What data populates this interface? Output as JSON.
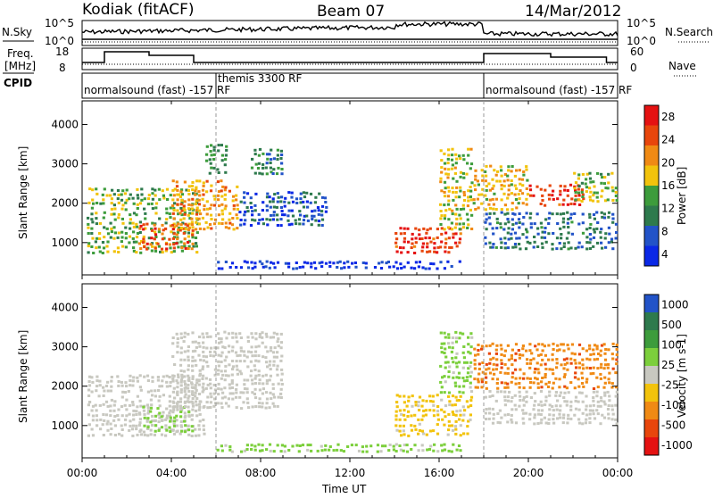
{
  "header": {
    "station": "Kodiak (fitACF)",
    "beam": "Beam 07",
    "date": "14/Mar/2012"
  },
  "strip": {
    "nsky_label": "N.Sky",
    "nsearch_label": "N.Search",
    "nsky_ticks": [
      "10^5",
      "10^0"
    ],
    "nsearch_ticks": [
      "10^5",
      "10^0"
    ],
    "freq_label_line1": "Freq.",
    "freq_label_line2": "[MHz]",
    "freq_ticks": [
      "18",
      "8"
    ],
    "nave_label": "Nave",
    "nave_ticks": [
      "60",
      "0"
    ],
    "cpid_label": "CPID",
    "cpid_segments": [
      {
        "label": "normalsound (fast) -157 RF",
        "start": "00:00",
        "end": "06:00"
      },
      {
        "label": "themis 3300 RF",
        "start": "06:00",
        "end": "18:00"
      },
      {
        "label": "normalsound (fast) -157 RF",
        "start": "18:00",
        "end": "24:00"
      }
    ]
  },
  "chart_data": [
    {
      "type": "heatmap",
      "name": "Power",
      "ylabel": "Slant Range [km]",
      "ylim": [
        180,
        4600
      ],
      "y_ticks": [
        "1000",
        "2000",
        "3000",
        "4000"
      ],
      "colorbar_label": "Power [dB]",
      "colorbar_ticks": [
        "28",
        "24",
        "20",
        "16",
        "12",
        "8",
        "4"
      ],
      "colorbar_range": [
        0,
        30
      ],
      "colors": [
        "#0a28e6",
        "#2253c8",
        "#2e7a4d",
        "#3d9c3c",
        "#f2c30c",
        "#f08a14",
        "#e8460c",
        "#e51212"
      ],
      "regions": [
        {
          "t0": 0.2,
          "t1": 5.2,
          "r0": 700,
          "r1": 2400,
          "v": 14
        },
        {
          "t0": 2.5,
          "t1": 5.0,
          "r0": 800,
          "r1": 1500,
          "v": 24
        },
        {
          "t0": 4.0,
          "t1": 7.0,
          "r0": 1300,
          "r1": 2600,
          "v": 20
        },
        {
          "t0": 5.5,
          "t1": 6.5,
          "r0": 2700,
          "r1": 3500,
          "v": 12
        },
        {
          "t0": 7.5,
          "t1": 9.0,
          "r0": 2700,
          "r1": 3400,
          "v": 10
        },
        {
          "t0": 7.0,
          "t1": 11.0,
          "r0": 1400,
          "r1": 2300,
          "v": 6
        },
        {
          "t0": 6.0,
          "t1": 17.0,
          "r0": 300,
          "r1": 550,
          "v": 3
        },
        {
          "t0": 14.0,
          "t1": 17.0,
          "r0": 700,
          "r1": 1400,
          "v": 26
        },
        {
          "t0": 16.0,
          "t1": 17.5,
          "r0": 1300,
          "r1": 3400,
          "v": 16
        },
        {
          "t0": 17.5,
          "t1": 20.0,
          "r0": 1800,
          "r1": 3000,
          "v": 18
        },
        {
          "t0": 20.0,
          "t1": 22.5,
          "r0": 1900,
          "r1": 2500,
          "v": 26
        },
        {
          "t0": 18.0,
          "t1": 24.0,
          "r0": 800,
          "r1": 1800,
          "v": 8
        },
        {
          "t0": 22.0,
          "t1": 24.0,
          "r0": 2000,
          "r1": 2800,
          "v": 14
        }
      ]
    },
    {
      "type": "heatmap",
      "name": "Velocity",
      "ylabel": "Slant Range [km]",
      "ylim": [
        180,
        4600
      ],
      "y_ticks": [
        "1000",
        "2000",
        "3000",
        "4000"
      ],
      "colorbar_label": "Velocity [m s-1]",
      "colorbar_ticks": [
        "1000",
        "500",
        "100",
        "25",
        "-25",
        "-100",
        "-500",
        "-1000"
      ],
      "colorbar_range": [
        -1200,
        1200
      ],
      "colors": [
        "#e51212",
        "#e8460c",
        "#f08a14",
        "#f2c30c",
        "#c8c8c0",
        "#7ccf3c",
        "#3d9c3c",
        "#2e7a4d",
        "#2253c8"
      ],
      "regions": [
        {
          "t0": 0.2,
          "t1": 5.5,
          "r0": 700,
          "r1": 2300,
          "v": 0
        },
        {
          "t0": 2.5,
          "t1": 5.0,
          "r0": 800,
          "r1": 1500,
          "v": 150
        },
        {
          "t0": 4.0,
          "t1": 9.0,
          "r0": 1400,
          "r1": 3400,
          "v": 0
        },
        {
          "t0": 6.0,
          "t1": 17.0,
          "r0": 300,
          "r1": 550,
          "v": 200
        },
        {
          "t0": 14.0,
          "t1": 17.5,
          "r0": 700,
          "r1": 1800,
          "v": -200
        },
        {
          "t0": 16.0,
          "t1": 17.5,
          "r0": 1800,
          "r1": 3400,
          "v": 200
        },
        {
          "t0": 17.5,
          "t1": 24.0,
          "r0": 1900,
          "r1": 3100,
          "v": -600
        },
        {
          "t0": 18.0,
          "t1": 24.0,
          "r0": 1000,
          "r1": 1900,
          "v": 0
        }
      ]
    }
  ],
  "x_axis": {
    "label": "Time UT",
    "ticks": [
      "00:00",
      "04:00",
      "08:00",
      "12:00",
      "16:00",
      "20:00",
      "00:00"
    ],
    "range_hours": [
      0,
      24
    ]
  }
}
